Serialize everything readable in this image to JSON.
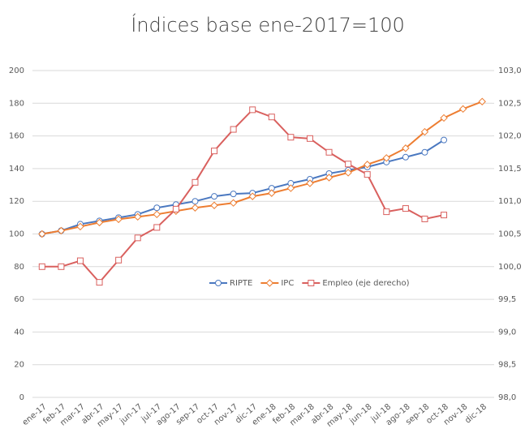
{
  "chart_data": {
    "type": "line",
    "title": "Índices base ene-2017=100",
    "categories": [
      "ene-17",
      "feb-17",
      "mar-17",
      "abr-17",
      "may-17",
      "jun-17",
      "jul-17",
      "ago-17",
      "sep-17",
      "oct-17",
      "nov-17",
      "dic-17",
      "ene-18",
      "feb-18",
      "mar-18",
      "abr-18",
      "may-18",
      "jun-18",
      "jul-18",
      "ago-18",
      "sep-18",
      "oct-18",
      "nov-18",
      "dic-18"
    ],
    "series": [
      {
        "name": "RIPTE",
        "color": "#4a78c0",
        "marker": "circle",
        "values": [
          100,
          102,
          106,
          108,
          110,
          112,
          116,
          118,
          120,
          123,
          124.5,
          125,
          128,
          131,
          133.5,
          137,
          139,
          141,
          144,
          147,
          150,
          157.5,
          null,
          null
        ]
      },
      {
        "name": "IPC",
        "color": "#ed7d31",
        "marker": "diamond",
        "values": [
          100,
          102,
          104.5,
          107,
          109,
          110.5,
          112,
          114,
          116,
          117.5,
          119,
          123,
          125,
          128,
          131,
          134.5,
          137.5,
          142.5,
          146.5,
          152.5,
          162.5,
          171,
          176.5,
          181
        ]
      },
      {
        "name": "Empleo (eje derecho)",
        "color": "#d9605e",
        "marker": "square",
        "axis": "y2",
        "values": [
          100.0,
          100.0,
          100.09,
          99.76,
          100.1,
          100.44,
          100.6,
          100.88,
          101.29,
          101.77,
          102.1,
          102.4,
          102.29,
          101.98,
          101.96,
          101.75,
          101.57,
          101.41,
          100.84,
          100.89,
          100.73,
          100.79,
          null,
          null
        ]
      }
    ],
    "ylim": [
      0,
      200
    ],
    "yticks": [
      0,
      20,
      40,
      60,
      80,
      100,
      120,
      140,
      160,
      180,
      200
    ],
    "y2lim": [
      98,
      103
    ],
    "y2ticks": [
      {
        "value": 98,
        "label": "98,0"
      },
      {
        "value": 98.5,
        "label": "98,5"
      },
      {
        "value": 99,
        "label": "99,0"
      },
      {
        "value": 99.5,
        "label": "99,5"
      },
      {
        "value": 100,
        "label": "100,0"
      },
      {
        "value": 100.5,
        "label": "100,5"
      },
      {
        "value": 101,
        "label": "101,0"
      },
      {
        "value": 101.5,
        "label": "101,5"
      },
      {
        "value": 102,
        "label": "102,0"
      },
      {
        "value": 102.5,
        "label": "102,5"
      },
      {
        "value": 103,
        "label": "103,0"
      }
    ],
    "grid": true,
    "legend": "center"
  }
}
